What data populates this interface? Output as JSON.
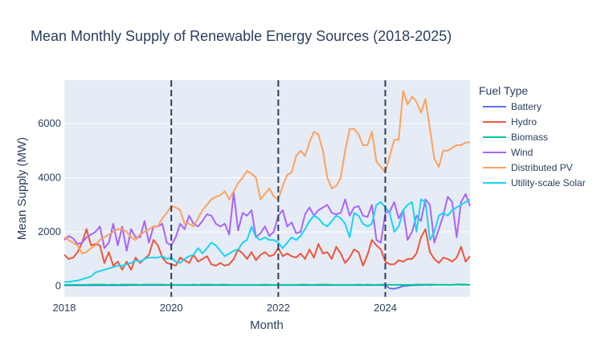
{
  "chart_data": {
    "type": "line",
    "title": "Mean Monthly Supply of Renewable Energy Sources (2018-2025)",
    "xlabel": "Month",
    "ylabel": "Mean Supply (MW)",
    "x_range": [
      "2018-01",
      "2025-08"
    ],
    "y_range": [
      -400,
      7600
    ],
    "x_ticks": [
      {
        "x": "2018-01",
        "label": "2018"
      },
      {
        "x": "2020-01",
        "label": "2020"
      },
      {
        "x": "2022-01",
        "label": "2022"
      },
      {
        "x": "2024-01",
        "label": "2024"
      }
    ],
    "y_ticks": [
      0,
      2000,
      4000,
      6000
    ],
    "vlines": [
      "2020-01",
      "2022-01",
      "2024-01"
    ],
    "grid": true,
    "legend": {
      "title": "Fuel Type",
      "position": "right"
    },
    "start_month": "2018-01",
    "series": [
      {
        "name": "Battery",
        "color": "#636efa",
        "values": [
          20,
          20,
          20,
          20,
          20,
          20,
          20,
          25,
          25,
          25,
          25,
          25,
          25,
          25,
          25,
          30,
          30,
          30,
          30,
          30,
          30,
          30,
          30,
          30,
          30,
          30,
          30,
          30,
          30,
          30,
          30,
          30,
          30,
          30,
          30,
          30,
          30,
          30,
          30,
          30,
          30,
          30,
          30,
          30,
          30,
          30,
          30,
          30,
          30,
          30,
          30,
          30,
          30,
          30,
          30,
          30,
          30,
          30,
          30,
          30,
          30,
          30,
          30,
          30,
          30,
          30,
          30,
          30,
          30,
          30,
          30,
          30,
          30,
          -90,
          -100,
          -60,
          0,
          10,
          20,
          30,
          30,
          40,
          30,
          40,
          40,
          40,
          40,
          40,
          60,
          40,
          40,
          40
        ]
      },
      {
        "name": "Hydro",
        "color": "#ef553b",
        "values": [
          1150,
          1000,
          1050,
          1250,
          1600,
          2100,
          1500,
          1550,
          1500,
          850,
          1250,
          750,
          900,
          600,
          900,
          600,
          1050,
          850,
          1000,
          1150,
          1700,
          1500,
          1050,
          850,
          800,
          750,
          1050,
          950,
          850,
          1150,
          900,
          1000,
          1100,
          800,
          750,
          850,
          750,
          800,
          1000,
          1350,
          1200,
          1000,
          1250,
          950,
          1150,
          1250,
          1100,
          1150,
          1400,
          1100,
          1200,
          1100,
          1050,
          1200,
          1000,
          1350,
          1050,
          1550,
          1200,
          1250,
          1000,
          1450,
          1200,
          850,
          1050,
          1350,
          1250,
          750,
          1150,
          1700,
          1500,
          1350,
          900,
          800,
          800,
          950,
          900,
          1000,
          1000,
          1200,
          1800,
          2100,
          1250,
          1000,
          850,
          1050,
          1000,
          900,
          1050,
          1450,
          900,
          1100
        ]
      },
      {
        "name": "Biomass",
        "color": "#00cc96",
        "values": [
          40,
          40,
          40,
          40,
          40,
          40,
          50,
          50,
          50,
          50,
          40,
          50,
          40,
          50,
          50,
          50,
          50,
          40,
          50,
          50,
          50,
          50,
          50,
          40,
          40,
          40,
          40,
          40,
          40,
          50,
          40,
          50,
          50,
          50,
          40,
          50,
          50,
          40,
          40,
          40,
          40,
          40,
          40,
          40,
          40,
          50,
          40,
          40,
          40,
          40,
          40,
          40,
          40,
          50,
          50,
          40,
          40,
          50,
          50,
          50,
          40,
          40,
          40,
          40,
          40,
          40,
          50,
          40,
          50,
          40,
          40,
          50,
          50,
          40,
          40,
          40,
          40,
          40,
          40,
          50,
          50,
          50,
          50,
          50,
          40,
          50,
          40,
          40,
          50,
          60,
          50,
          40
        ]
      },
      {
        "name": "Wind",
        "color": "#ab63fa",
        "values": [
          1700,
          1850,
          1750,
          1550,
          1600,
          1800,
          1900,
          2000,
          2200,
          1400,
          1600,
          2300,
          1500,
          2200,
          1300,
          2100,
          1800,
          1800,
          2400,
          1600,
          2200,
          2200,
          2300,
          1600,
          1500,
          1800,
          2300,
          2100,
          2600,
          2300,
          2200,
          2400,
          2650,
          2600,
          2300,
          2200,
          2300,
          1900,
          3450,
          2050,
          2700,
          2600,
          2800,
          1800,
          1950,
          2200,
          1850,
          2000,
          2600,
          2800,
          2200,
          2350,
          1950,
          2000,
          2650,
          2900,
          2600,
          2800,
          2900,
          3000,
          2700,
          2650,
          2700,
          3200,
          2600,
          2900,
          2950,
          2600,
          2550,
          3000,
          1700,
          1600,
          2700,
          2750,
          3100,
          2500,
          2800,
          1700,
          2000,
          2600,
          2400,
          3200,
          3000,
          1600,
          2100,
          2600,
          3300,
          3100,
          1800,
          3100,
          3400,
          2950
        ]
      },
      {
        "name": "Distributed PV",
        "color": "#ffa15a",
        "values": [
          1800,
          1700,
          1600,
          1500,
          1200,
          1250,
          1400,
          1500,
          1700,
          1800,
          1900,
          2000,
          2100,
          2100,
          2000,
          1800,
          1700,
          1900,
          2000,
          2100,
          2200,
          2200,
          2500,
          2700,
          2950,
          2900,
          2800,
          2300,
          2300,
          2200,
          2500,
          2800,
          3000,
          3200,
          3300,
          3350,
          3500,
          3200,
          3500,
          3800,
          4000,
          4250,
          4150,
          4000,
          3200,
          3400,
          3600,
          3300,
          3200,
          3700,
          4100,
          4200,
          4800,
          5000,
          4800,
          5300,
          5700,
          5600,
          5000,
          4000,
          3600,
          3700,
          4000,
          5000,
          5800,
          5800,
          5600,
          5200,
          5200,
          5700,
          4600,
          4400,
          4200,
          4800,
          5400,
          5400,
          7200,
          6700,
          7000,
          6800,
          6400,
          6900,
          5800,
          4700,
          4400,
          5000,
          5000,
          5100,
          5200,
          5200,
          5300,
          5300
        ]
      },
      {
        "name": "Utility-scale Solar",
        "color": "#19d3f3",
        "values": [
          150,
          150,
          180,
          200,
          250,
          300,
          350,
          500,
          550,
          600,
          650,
          700,
          750,
          750,
          800,
          850,
          950,
          900,
          1000,
          1050,
          1050,
          1050,
          1100,
          1000,
          1050,
          900,
          850,
          1000,
          1100,
          1150,
          1400,
          1200,
          1400,
          1600,
          1500,
          1300,
          1100,
          1200,
          1300,
          1350,
          1600,
          1700,
          2200,
          1800,
          1700,
          1800,
          1700,
          1700,
          1600,
          1400,
          1600,
          1800,
          1700,
          1850,
          2100,
          2400,
          2600,
          2500,
          2300,
          2200,
          2400,
          2600,
          2500,
          2300,
          1800,
          2700,
          2600,
          2300,
          2200,
          2300,
          3000,
          3100,
          2900,
          2700,
          2000,
          2200,
          2800,
          3000,
          3100,
          2000,
          3200,
          3100,
          1700,
          2000,
          2600,
          2700,
          2600,
          2800,
          2900,
          3000,
          3100,
          3200
        ]
      }
    ]
  }
}
